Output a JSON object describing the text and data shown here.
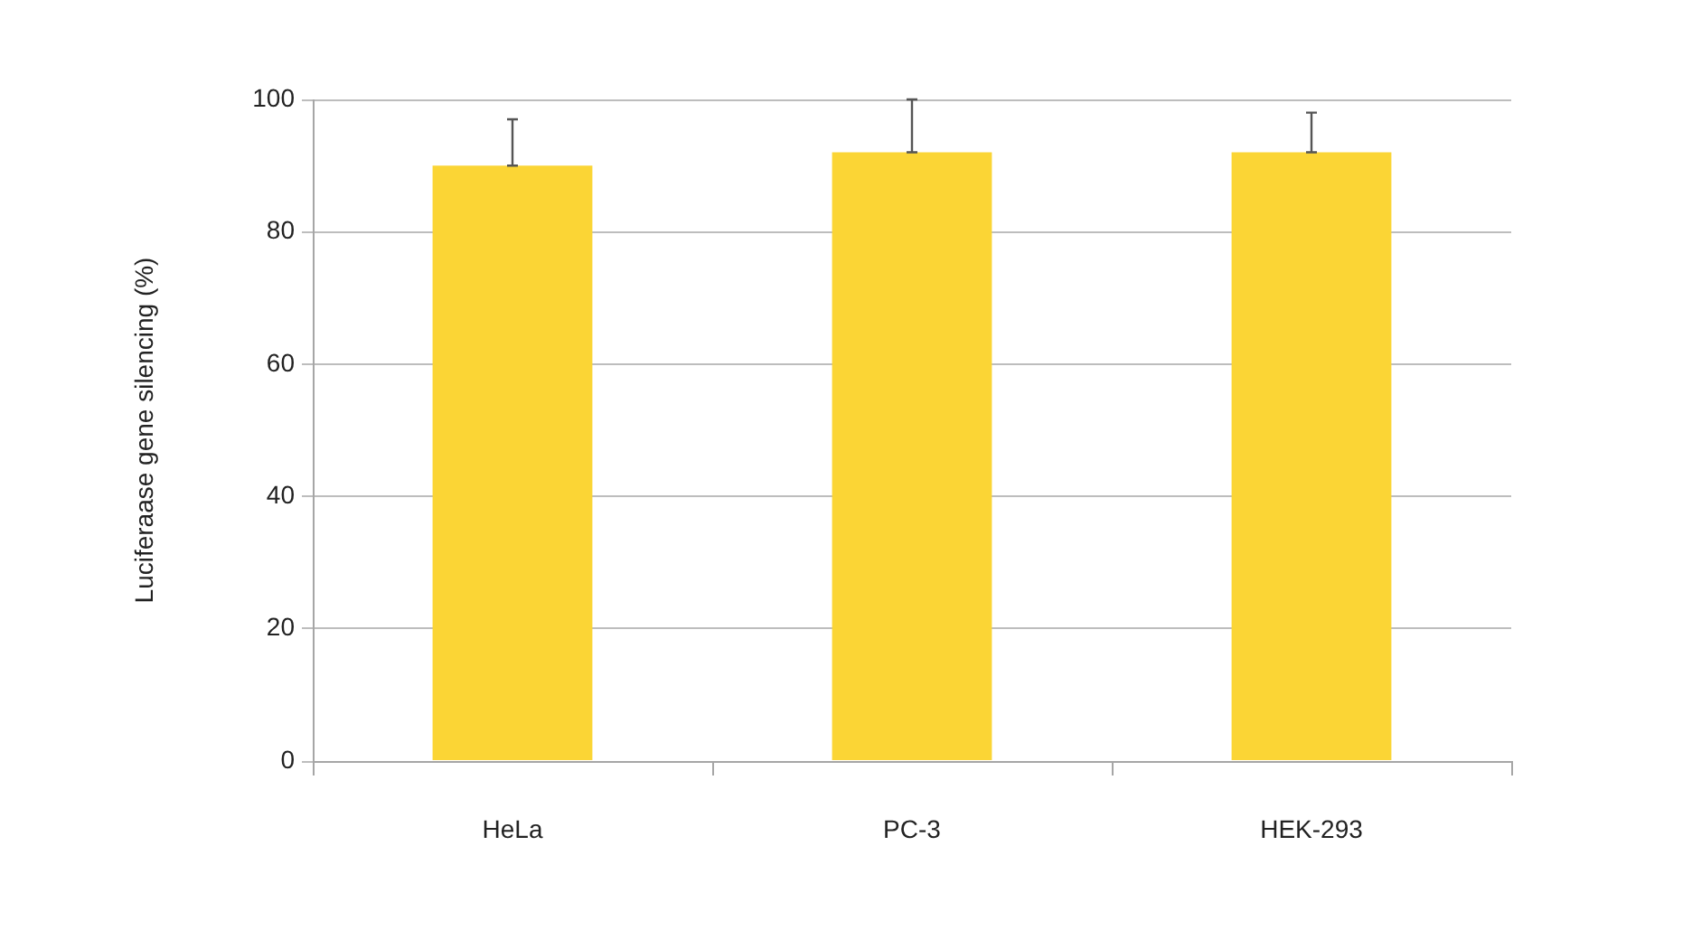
{
  "chart_data": {
    "type": "bar",
    "ylabel": "Luciferaase gene silencing (%)",
    "categories": [
      "HeLa",
      "PC-3",
      "HEK-293"
    ],
    "values": [
      90,
      92,
      92
    ],
    "errors": [
      [
        90,
        97
      ],
      [
        92,
        100
      ],
      [
        92,
        98
      ]
    ],
    "color": "#fbd535",
    "ylim": [
      0,
      100
    ],
    "yticks": [
      0,
      20,
      40,
      60,
      80,
      100
    ],
    "grid": "y"
  }
}
